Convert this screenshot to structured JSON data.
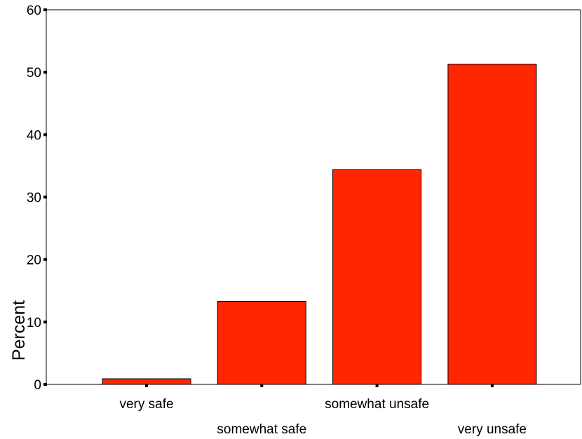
{
  "chart_data": {
    "type": "bar",
    "title": "",
    "xlabel": "",
    "ylabel": "Percent",
    "categories": [
      "very safe",
      "somewhat safe",
      "somewhat unsafe",
      "very unsafe"
    ],
    "values": [
      0.9,
      13.3,
      34.4,
      51.3
    ],
    "ylim": [
      0,
      60
    ],
    "yticks": [
      "0",
      "10",
      "20",
      "30",
      "40",
      "50",
      "60"
    ],
    "grid": false,
    "legend": "none",
    "bar_color": "#ff2600",
    "bar_edge_color": "#000000"
  }
}
